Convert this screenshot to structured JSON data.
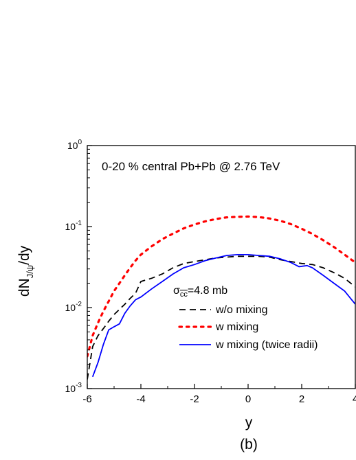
{
  "chart_data": {
    "type": "line",
    "title": "",
    "annotation": "0-20 % central Pb+Pb @ 2.76 TeV",
    "sigma_label": {
      "symbol": "σ",
      "subscript": "cc",
      "value": "=4.8 mb"
    },
    "caption": "(b)",
    "xlabel": "y",
    "ylabel": {
      "main": "dN",
      "subscript": "J/ψ",
      "suffix": "/dy"
    },
    "xlim": [
      -6,
      4
    ],
    "ylim": [
      0.001,
      1
    ],
    "yscale": "log",
    "xticks": [
      {
        "value": -6,
        "label": "-6"
      },
      {
        "value": -4,
        "label": "-4"
      },
      {
        "value": -2,
        "label": "-2"
      },
      {
        "value": 0,
        "label": "0"
      },
      {
        "value": 2,
        "label": "2"
      },
      {
        "value": 4,
        "label": "4"
      }
    ],
    "yticks": [
      {
        "value": 0.001,
        "base": "10",
        "exp": "-3"
      },
      {
        "value": 0.01,
        "base": "10",
        "exp": "-2"
      },
      {
        "value": 0.1,
        "base": "10",
        "exp": "-1"
      },
      {
        "value": 1,
        "base": "10",
        "exp": "0"
      }
    ],
    "legend_position": "lower-center",
    "series": [
      {
        "name": "w/o mixing",
        "style": "dashed",
        "color": "#000000",
        "x": [
          -6,
          -5.8,
          -5.6,
          -5.4,
          -5.2,
          -5,
          -4.8,
          -4.6,
          -4.4,
          -4.2,
          -4,
          -3.6,
          -3.2,
          -2.8,
          -2.4,
          -2,
          -1.6,
          -1.2,
          -0.8,
          -0.4,
          0,
          0.4,
          0.8,
          1.2,
          1.6,
          2,
          2.4,
          2.8,
          3.2,
          3.6,
          4
        ],
        "y": [
          0.0013,
          0.0033,
          0.0045,
          0.0055,
          0.0068,
          0.0082,
          0.0095,
          0.011,
          0.013,
          0.015,
          0.021,
          0.023,
          0.026,
          0.031,
          0.035,
          0.037,
          0.039,
          0.041,
          0.042,
          0.043,
          0.043,
          0.043,
          0.042,
          0.039,
          0.037,
          0.035,
          0.034,
          0.031,
          0.027,
          0.023,
          0.018
        ]
      },
      {
        "name": "w mixing",
        "style": "dotted",
        "color": "#ff0000",
        "x": [
          -6,
          -5.8,
          -5.6,
          -5.4,
          -5.2,
          -5,
          -4.8,
          -4.6,
          -4.4,
          -4.2,
          -4,
          -3.6,
          -3.2,
          -2.8,
          -2.4,
          -2,
          -1.6,
          -1.2,
          -0.8,
          -0.4,
          0,
          0.4,
          0.8,
          1.2,
          1.6,
          2,
          2.4,
          2.8,
          3.2,
          3.6,
          4
        ],
        "y": [
          0.0025,
          0.0045,
          0.0065,
          0.009,
          0.012,
          0.016,
          0.02,
          0.025,
          0.031,
          0.038,
          0.045,
          0.057,
          0.07,
          0.082,
          0.095,
          0.106,
          0.116,
          0.124,
          0.13,
          0.132,
          0.133,
          0.131,
          0.126,
          0.118,
          0.107,
          0.094,
          0.081,
          0.068,
          0.056,
          0.045,
          0.036
        ]
      },
      {
        "name": "w mixing (twice radii)",
        "style": "solid",
        "color": "#0000ff",
        "x": [
          -5.8,
          -5.6,
          -5.4,
          -5.2,
          -5,
          -4.8,
          -4.6,
          -4.4,
          -4.2,
          -4,
          -3.6,
          -3.2,
          -2.8,
          -2.4,
          -2,
          -1.6,
          -1.2,
          -0.8,
          -0.4,
          0,
          0.4,
          0.8,
          1.2,
          1.6,
          1.9,
          2.2,
          2.4,
          2.8,
          3.2,
          3.6,
          4
        ],
        "y": [
          0.0014,
          0.0021,
          0.0035,
          0.0053,
          0.0058,
          0.0063,
          0.0085,
          0.0105,
          0.0125,
          0.0135,
          0.017,
          0.021,
          0.026,
          0.031,
          0.034,
          0.038,
          0.041,
          0.044,
          0.045,
          0.045,
          0.044,
          0.043,
          0.04,
          0.036,
          0.032,
          0.033,
          0.031,
          0.025,
          0.02,
          0.016,
          0.011
        ]
      }
    ]
  }
}
